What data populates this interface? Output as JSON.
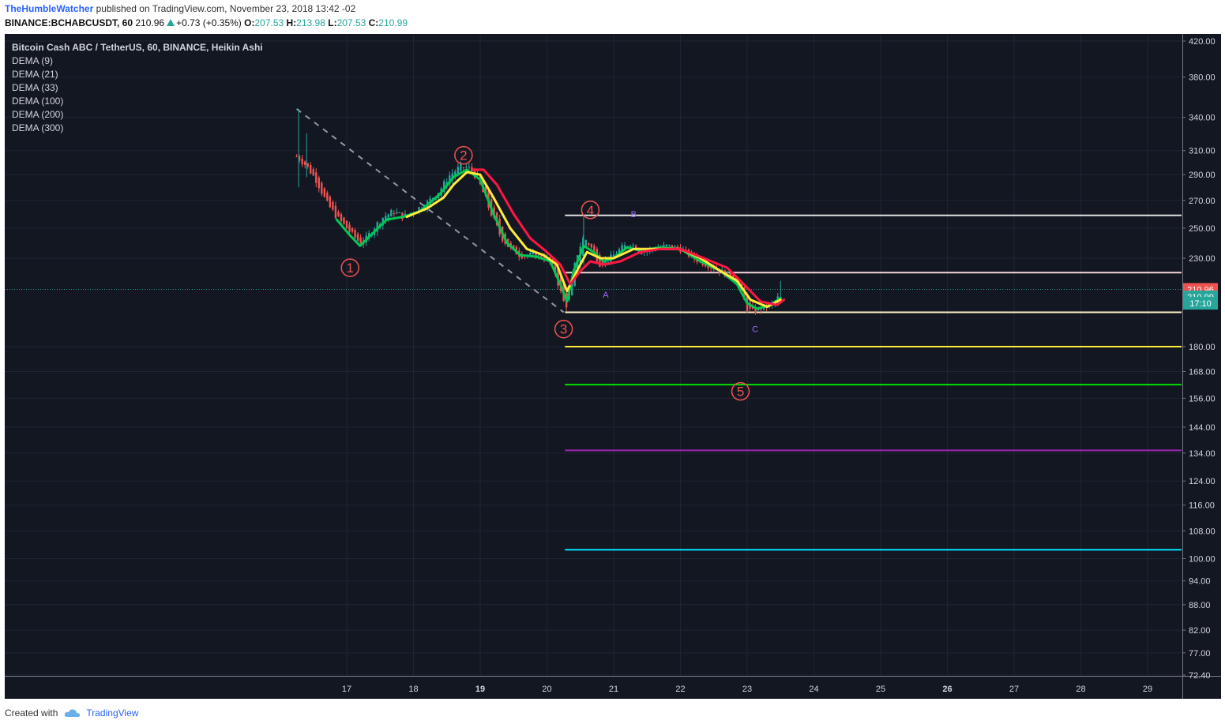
{
  "header": {
    "author": "TheHumbleWatcher",
    "published": "published on TradingView.com, November 23, 2018 13:42 -02",
    "symbol": "BINANCE:BCHABCUSDT, 60",
    "last": "210.96",
    "change": "+0.73 (+0.35%)",
    "o_label": "O:",
    "o": "207.53",
    "h_label": "H:",
    "h": "213.98",
    "l_label": "L:",
    "l": "207.53",
    "c_label": "C:",
    "c": "210.99"
  },
  "legend": {
    "title": "Bitcoin Cash ABC / TetherUS, 60, BINANCE, Heikin Ashi",
    "indicators": [
      "DEMA (9)",
      "DEMA (21)",
      "DEMA (33)",
      "DEMA (100)",
      "DEMA (200)",
      "DEMA (300)"
    ]
  },
  "footer": {
    "created_with": "Created with",
    "brand": "TradingView"
  },
  "colors": {
    "background": "#131722",
    "grid": "#1f2433",
    "up": "#26a69a",
    "down": "#ef5350",
    "dema_fast": "#00c853",
    "dema_mid": "#ffeb3b",
    "dema_slow": "#ff1744",
    "text": "#d1d4dc",
    "label_red": "#ef5350",
    "label_purple": "#9c6bff"
  },
  "chart_data": {
    "type": "candlestick",
    "title": "Bitcoin Cash ABC / TetherUS, 60, BINANCE, Heikin Ashi",
    "scale": "log",
    "x_day_range": [
      16.1,
      29.5
    ],
    "y_range": [
      72.4,
      428
    ],
    "y_ticks": [
      "420.00",
      "380.00",
      "340.00",
      "310.00",
      "290.00",
      "270.00",
      "250.00",
      "230.00",
      "180.00",
      "168.00",
      "156.00",
      "144.00",
      "134.00",
      "124.00",
      "116.00",
      "108.00",
      "100.00",
      "94.00",
      "88.00",
      "82.00",
      "77.00",
      "72.40"
    ],
    "y_tick_values": [
      420,
      380,
      340,
      310,
      290,
      270,
      250,
      230,
      180,
      168,
      156,
      144,
      134,
      124,
      116,
      108,
      100,
      94,
      88,
      82,
      77,
      72.4
    ],
    "x_ticks": [
      {
        "label": "17",
        "day": 17,
        "bold": false
      },
      {
        "label": "18",
        "day": 18,
        "bold": false
      },
      {
        "label": "19",
        "day": 19,
        "bold": true
      },
      {
        "label": "20",
        "day": 20,
        "bold": false
      },
      {
        "label": "21",
        "day": 21,
        "bold": false
      },
      {
        "label": "22",
        "day": 22,
        "bold": false
      },
      {
        "label": "23",
        "day": 23,
        "bold": false
      },
      {
        "label": "24",
        "day": 24,
        "bold": false
      },
      {
        "label": "25",
        "day": 25,
        "bold": false
      },
      {
        "label": "26",
        "day": 26,
        "bold": true
      },
      {
        "label": "27",
        "day": 27,
        "bold": false
      },
      {
        "label": "28",
        "day": 28,
        "bold": false
      },
      {
        "label": "29",
        "day": 29,
        "bold": false
      }
    ],
    "price_anchors": [
      [
        16.25,
        305
      ],
      [
        16.4,
        297
      ],
      [
        16.55,
        285
      ],
      [
        16.7,
        268
      ],
      [
        16.85,
        258
      ],
      [
        17.0,
        250
      ],
      [
        17.15,
        242
      ],
      [
        17.25,
        240
      ],
      [
        17.4,
        250
      ],
      [
        17.55,
        258
      ],
      [
        17.7,
        262
      ],
      [
        17.85,
        258
      ],
      [
        18.0,
        262
      ],
      [
        18.2,
        268
      ],
      [
        18.4,
        278
      ],
      [
        18.55,
        290
      ],
      [
        18.7,
        296
      ],
      [
        18.82,
        296
      ],
      [
        18.95,
        288
      ],
      [
        19.05,
        275
      ],
      [
        19.15,
        262
      ],
      [
        19.3,
        245
      ],
      [
        19.45,
        236
      ],
      [
        19.6,
        232
      ],
      [
        19.8,
        232
      ],
      [
        20.0,
        230
      ],
      [
        20.1,
        224
      ],
      [
        20.2,
        210
      ],
      [
        20.28,
        200
      ],
      [
        20.35,
        212
      ],
      [
        20.45,
        232
      ],
      [
        20.55,
        244
      ],
      [
        20.65,
        238
      ],
      [
        20.8,
        226
      ],
      [
        20.95,
        230
      ],
      [
        21.1,
        236
      ],
      [
        21.25,
        240
      ],
      [
        21.4,
        234
      ],
      [
        21.55,
        236
      ],
      [
        21.8,
        238
      ],
      [
        22.0,
        236
      ],
      [
        22.2,
        230
      ],
      [
        22.4,
        226
      ],
      [
        22.6,
        222
      ],
      [
        22.8,
        218
      ],
      [
        22.9,
        210
      ],
      [
        23.0,
        200
      ],
      [
        23.1,
        198
      ],
      [
        23.25,
        201
      ],
      [
        23.4,
        203
      ],
      [
        23.5,
        208
      ]
    ],
    "dema_lines": [
      {
        "name": "DEMA (9)",
        "color": "#00c853",
        "points": [
          [
            16.85,
            256
          ],
          [
            17.05,
            245
          ],
          [
            17.2,
            238
          ],
          [
            17.4,
            247
          ],
          [
            17.6,
            256
          ],
          [
            17.85,
            258
          ],
          [
            18.1,
            262
          ],
          [
            18.4,
            275
          ],
          [
            18.6,
            288
          ],
          [
            18.8,
            294
          ],
          [
            19.0,
            286
          ],
          [
            19.2,
            260
          ],
          [
            19.4,
            240
          ],
          [
            19.6,
            232
          ],
          [
            19.85,
            231
          ],
          [
            20.05,
            228
          ],
          [
            20.2,
            214
          ],
          [
            20.3,
            204
          ],
          [
            20.4,
            222
          ],
          [
            20.55,
            238
          ],
          [
            20.7,
            234
          ],
          [
            20.85,
            228
          ],
          [
            21.0,
            230
          ],
          [
            21.2,
            237
          ],
          [
            21.4,
            235
          ],
          [
            21.7,
            237
          ],
          [
            22.0,
            236
          ],
          [
            22.3,
            228
          ],
          [
            22.6,
            222
          ],
          [
            22.85,
            214
          ],
          [
            23.0,
            203
          ],
          [
            23.15,
            200
          ],
          [
            23.35,
            202
          ],
          [
            23.5,
            206
          ]
        ]
      },
      {
        "name": "DEMA (21)",
        "color": "#ffeb3b",
        "points": [
          [
            17.9,
            258
          ],
          [
            18.2,
            264
          ],
          [
            18.45,
            272
          ],
          [
            18.6,
            282
          ],
          [
            18.8,
            292
          ],
          [
            19.0,
            290
          ],
          [
            19.2,
            272
          ],
          [
            19.45,
            250
          ],
          [
            19.7,
            236
          ],
          [
            19.95,
            232
          ],
          [
            20.15,
            226
          ],
          [
            20.3,
            210
          ],
          [
            20.45,
            222
          ],
          [
            20.6,
            234
          ],
          [
            20.8,
            230
          ],
          [
            21.0,
            230
          ],
          [
            21.3,
            236
          ],
          [
            21.6,
            236
          ],
          [
            22.0,
            236
          ],
          [
            22.3,
            230
          ],
          [
            22.6,
            222
          ],
          [
            22.85,
            216
          ],
          [
            23.05,
            205
          ],
          [
            23.3,
            201
          ],
          [
            23.5,
            205
          ]
        ]
      },
      {
        "name": "DEMA (33)",
        "color": "#ff1744",
        "points": [
          [
            18.9,
            294
          ],
          [
            19.05,
            294
          ],
          [
            19.25,
            282
          ],
          [
            19.5,
            260
          ],
          [
            19.75,
            243
          ],
          [
            20.0,
            234
          ],
          [
            20.2,
            226
          ],
          [
            20.35,
            214
          ],
          [
            20.5,
            222
          ],
          [
            20.65,
            228
          ],
          [
            20.85,
            226
          ],
          [
            21.1,
            228
          ],
          [
            21.4,
            234
          ],
          [
            21.7,
            236
          ],
          [
            22.0,
            236
          ],
          [
            22.35,
            230
          ],
          [
            22.7,
            224
          ],
          [
            22.95,
            214
          ],
          [
            23.2,
            204
          ],
          [
            23.45,
            202
          ],
          [
            23.55,
            205
          ]
        ]
      }
    ],
    "horizontal_levels": [
      {
        "price": 259,
        "color": "#e0e0e0"
      },
      {
        "price": 221,
        "color": "#f3d6d6"
      },
      {
        "price": 198,
        "color": "#fff3c4"
      },
      {
        "price": 180,
        "color": "#ffeb3b"
      },
      {
        "price": 162,
        "color": "#00e000"
      },
      {
        "price": 135,
        "color": "#9c27b0"
      },
      {
        "price": 102.5,
        "color": "#00e5ff"
      }
    ],
    "level_start_day": 20.27,
    "trendline": {
      "from": [
        16.25,
        348
      ],
      "to": [
        20.25,
        198
      ]
    },
    "wave_labels": [
      {
        "text": "1",
        "day": 17.05,
        "price": 224,
        "color": "#ef5350"
      },
      {
        "text": "2",
        "day": 18.75,
        "price": 306,
        "color": "#ef5350"
      },
      {
        "text": "3",
        "day": 20.25,
        "price": 189,
        "color": "#ef5350"
      },
      {
        "text": "4",
        "day": 20.65,
        "price": 263,
        "color": "#ef5350"
      },
      {
        "text": "5",
        "day": 22.9,
        "price": 159,
        "color": "#ef5350"
      }
    ],
    "abc_labels": [
      {
        "text": "A",
        "day": 20.88,
        "price": 208,
        "color": "#9c6bff"
      },
      {
        "text": "B",
        "day": 21.3,
        "price": 260,
        "color": "#9c6bff"
      },
      {
        "text": "C",
        "day": 23.12,
        "price": 189,
        "color": "#9c6bff"
      }
    ],
    "current_price": 210.96,
    "price_tags": [
      {
        "text": "210.96",
        "price": 210.96,
        "color": "#ef5350"
      },
      {
        "text": "210.99",
        "price": 206.6,
        "color": "#26a69a"
      },
      {
        "text": "17:10",
        "price": 203.0,
        "color": "#26a69a"
      }
    ]
  }
}
